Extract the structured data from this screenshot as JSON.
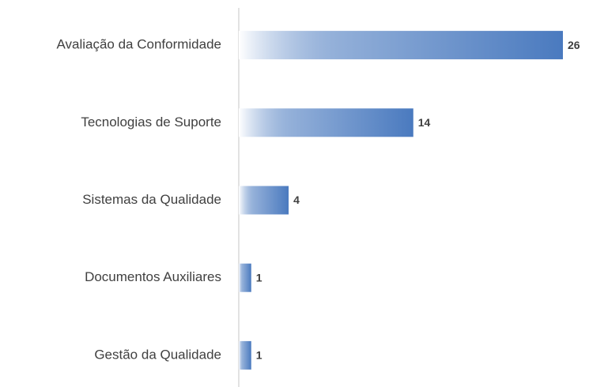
{
  "chart_data": {
    "type": "bar",
    "orientation": "horizontal",
    "categories": [
      "Avaliação da Conformidade",
      "Tecnologias de Suporte",
      "Sistemas da Qualidade",
      "Documentos Auxiliares",
      "Gestão da Qualidade"
    ],
    "values": [
      26,
      14,
      4,
      1,
      1
    ],
    "color": "#4a7abf",
    "xlim": [
      0,
      26
    ]
  }
}
